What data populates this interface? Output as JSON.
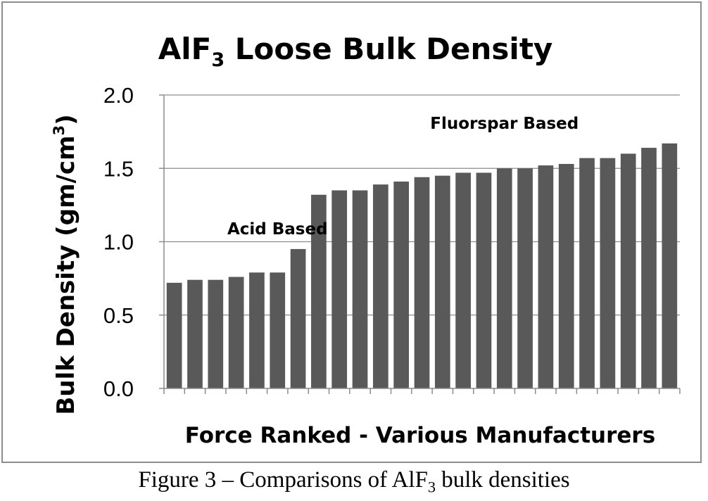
{
  "chart_data": {
    "type": "bar",
    "title": "AlF",
    "title_subscript": "3",
    "title_rest": " Loose Bulk Density",
    "ylabel": "Bulk Density (gm/cm",
    "ylabel_superscript": "3",
    "ylabel_close": ")",
    "xlabel": "Force Ranked - Various Manufacturers",
    "ylim": [
      0,
      2.0
    ],
    "yticks": [
      "0.0",
      "0.5",
      "1.0",
      "1.5",
      "2.0"
    ],
    "grid": true,
    "values": [
      0.72,
      0.74,
      0.74,
      0.76,
      0.79,
      0.79,
      0.95,
      1.32,
      1.35,
      1.35,
      1.39,
      1.41,
      1.44,
      1.45,
      1.47,
      1.47,
      1.5,
      1.5,
      1.52,
      1.53,
      1.57,
      1.57,
      1.6,
      1.64,
      1.67
    ],
    "bar_color": "#595959",
    "annotations": [
      {
        "text": "Acid Based",
        "x": 5.5,
        "y": 1.05
      },
      {
        "text": "Fluorspar Based",
        "x": 16.5,
        "y": 1.77
      }
    ]
  },
  "caption": {
    "prefix": "Figure 3 – Comparisons of AlF",
    "subscript": "3",
    "suffix": " bulk densities"
  }
}
